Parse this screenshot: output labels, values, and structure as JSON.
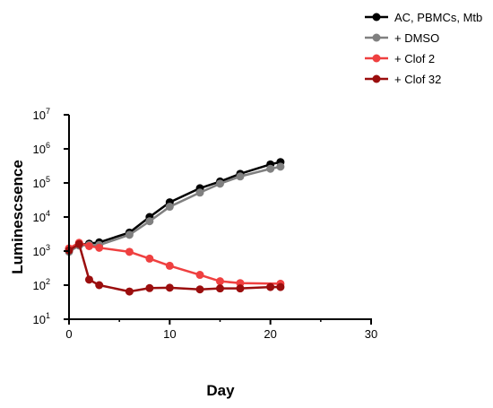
{
  "chart_data": {
    "type": "line",
    "xlabel": "Day",
    "ylabel": "Luminescsence",
    "xlim": [
      0,
      30
    ],
    "ylim": [
      10,
      10000000
    ],
    "yscale": "log",
    "grid": false,
    "legend_position": "top-right",
    "x_ticks": [
      "0",
      "10",
      "20",
      "30"
    ],
    "y_ticks": [
      {
        "base": "10",
        "exp": "1",
        "value": 10
      },
      {
        "base": "10",
        "exp": "2",
        "value": 100
      },
      {
        "base": "10",
        "exp": "3",
        "value": 1000
      },
      {
        "base": "10",
        "exp": "4",
        "value": 10000
      },
      {
        "base": "10",
        "exp": "5",
        "value": 100000
      },
      {
        "base": "10",
        "exp": "6",
        "value": 1000000
      },
      {
        "base": "10",
        "exp": "7",
        "value": 10000000
      }
    ],
    "series": [
      {
        "name": "AC, PBMCs, Mtb",
        "color": "#000000",
        "x": [
          0,
          1,
          2,
          3,
          6,
          8,
          10,
          13,
          15,
          17,
          20,
          21
        ],
        "y": [
          1150,
          1550,
          1650,
          1800,
          3500,
          10000,
          27000,
          70000,
          110000,
          185000,
          350000,
          410000
        ]
      },
      {
        "name": "+ DMSO",
        "color": "#808080",
        "x": [
          0,
          1,
          2,
          3,
          6,
          8,
          10,
          13,
          15,
          17,
          20,
          21
        ],
        "y": [
          950,
          1450,
          1500,
          1500,
          3000,
          7500,
          20000,
          52000,
          95000,
          155000,
          260000,
          300000
        ]
      },
      {
        "name": "+ Clof 2",
        "color": "#ef4040",
        "x": [
          0,
          1,
          2,
          3,
          6,
          8,
          10,
          13,
          15,
          17,
          21
        ],
        "y": [
          1200,
          1750,
          1400,
          1250,
          950,
          600,
          370,
          200,
          130,
          115,
          110
        ]
      },
      {
        "name": "+ Clof 32",
        "color": "#9b0e0e",
        "x": [
          0,
          1,
          2,
          3,
          6,
          8,
          10,
          13,
          15,
          17,
          20,
          21
        ],
        "y": [
          1050,
          1600,
          145,
          100,
          65,
          82,
          84,
          75,
          80,
          80,
          88,
          88
        ]
      }
    ]
  }
}
